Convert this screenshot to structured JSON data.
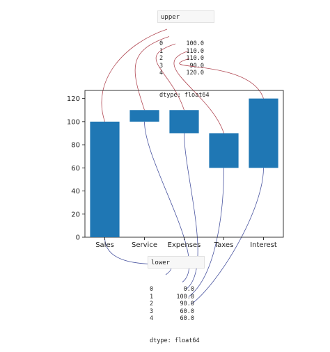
{
  "upper_box": {
    "title": "upper",
    "index": [
      "0",
      "1",
      "2",
      "3",
      "4"
    ],
    "values": [
      "100.0",
      "110.0",
      "110.0",
      "90.0",
      "120.0"
    ],
    "dtype": "dtype: float64"
  },
  "lower_box": {
    "title": "lower",
    "index": [
      "0",
      "1",
      "2",
      "3",
      "4"
    ],
    "values": [
      "0.0",
      "100.0",
      "90.0",
      "60.0",
      "60.0"
    ],
    "dtype": "dtype: float64"
  },
  "colors": {
    "bar": "#1f77b4",
    "upper_link": "#b24a55",
    "lower_link": "#4a55a0"
  },
  "chart_data": {
    "type": "bar",
    "categories": [
      "Sales",
      "Service",
      "Expenses",
      "Taxes",
      "Interest"
    ],
    "upper": [
      100,
      110,
      110,
      90,
      120
    ],
    "lower": [
      0,
      100,
      90,
      60,
      60
    ],
    "yticks": [
      0,
      20,
      40,
      60,
      80,
      100,
      120
    ],
    "ylim": [
      0,
      127
    ],
    "title": "",
    "xlabel": "",
    "ylabel": "",
    "grid": false
  }
}
